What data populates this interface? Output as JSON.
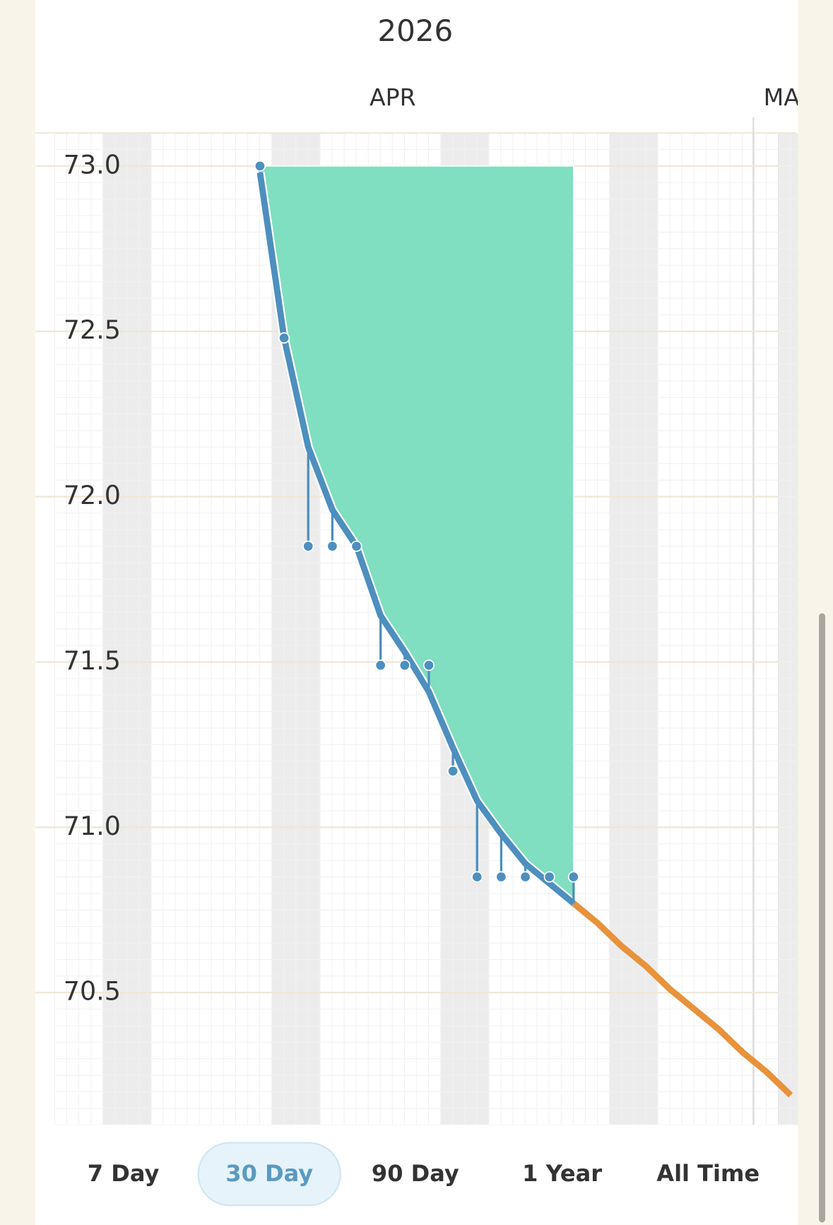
{
  "chart_data": {
    "type": "line",
    "title": "2026",
    "months": [
      "APR",
      "MA"
    ],
    "categories": [
      null,
      null,
      null,
      null,
      null,
      null,
      null,
      null,
      null,
      null,
      null,
      null,
      null,
      null,
      null,
      null,
      null,
      null,
      null,
      null,
      null,
      null,
      null
    ],
    "ylim": [
      70.1,
      73.1
    ],
    "yticks": [
      {
        "value": 73,
        "label": "73.0"
      },
      72.5,
      {
        "value": 72,
        "label": "72.0"
      },
      71.5,
      {
        "value": 71,
        "label": "71.0"
      },
      70.5
    ],
    "grid": true,
    "area_top": 73,
    "area_color": "#80dfc0",
    "series": [
      {
        "color": "#4d8fbf",
        "values": [
          72.98,
          72.48,
          72.15,
          71.96,
          71.85,
          71.64,
          71.53,
          71.41,
          71.24,
          71.08,
          70.98,
          70.89,
          70.83,
          70.77,
          null,
          null,
          null,
          null,
          null,
          null,
          null,
          null,
          null
        ]
      },
      {
        "color": "#4d8fbf",
        "values": [
          73.0,
          72.48,
          71.85,
          71.85,
          71.85,
          71.49,
          71.49,
          71.49,
          71.17,
          70.85,
          70.85,
          70.85,
          70.85,
          70.85,
          null,
          null,
          null,
          null,
          null,
          null,
          null,
          null,
          null
        ]
      },
      {
        "color": "#e8923a",
        "values": [
          null,
          null,
          null,
          null,
          null,
          null,
          null,
          null,
          null,
          null,
          null,
          null,
          null,
          70.77,
          70.71,
          70.64,
          70.58,
          70.51,
          70.45,
          70.39,
          70.32,
          70.26,
          70.19
        ]
      }
    ]
  },
  "tabs": {
    "items": [
      "7 Day",
      "30 Day",
      "90 Day",
      "1 Year",
      "All Time"
    ],
    "selected": 1
  }
}
